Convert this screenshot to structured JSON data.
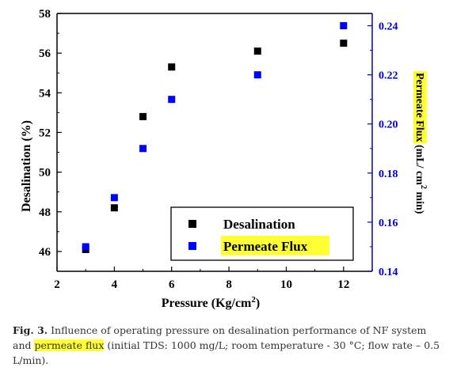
{
  "chart_data": {
    "type": "scatter",
    "x": [
      3,
      4,
      5,
      6,
      9,
      12
    ],
    "xlabel": "Pressure (Kg/cm",
    "xlabel_sup": "2",
    "xlabel_end": ")",
    "xlim": [
      2,
      13
    ],
    "xticks": [
      2,
      4,
      6,
      8,
      10,
      12
    ],
    "left_axis": {
      "label": "Desalination (%)",
      "ylim": [
        45,
        58
      ],
      "ticks": [
        46,
        48,
        50,
        52,
        54,
        56,
        58
      ],
      "color": "#000000"
    },
    "right_axis": {
      "label_part1": "Permeate Flux",
      "label_part2": " (mL/ cm",
      "label_sup": "2",
      "label_part3": " min)",
      "ylim": [
        0.14,
        0.245
      ],
      "ticks": [
        "0.14",
        "0.16",
        "0.18",
        "0.20",
        "0.22",
        "0.24"
      ],
      "color": "#0000cc"
    },
    "series": [
      {
        "name": "Desalination",
        "axis": "left",
        "color": "#000000",
        "values": [
          46.1,
          48.2,
          52.8,
          55.3,
          56.1,
          56.5
        ]
      },
      {
        "name": "Permeate Flux",
        "axis": "right",
        "color": "#0000ff",
        "values": [
          0.15,
          0.17,
          0.19,
          0.21,
          0.22,
          0.24
        ]
      }
    ],
    "legend_position": "bottom-right",
    "highlight_color": "#ffff33"
  },
  "caption": {
    "label": "Fig. 3.",
    "text_before": " Influence of operating pressure on desalination performance of NF system and ",
    "highlight": "permeate flux",
    "text_after": " (initial TDS: 1000 mg/L; room temperature - 30 °C; flow rate – 0.5 L/min)."
  }
}
